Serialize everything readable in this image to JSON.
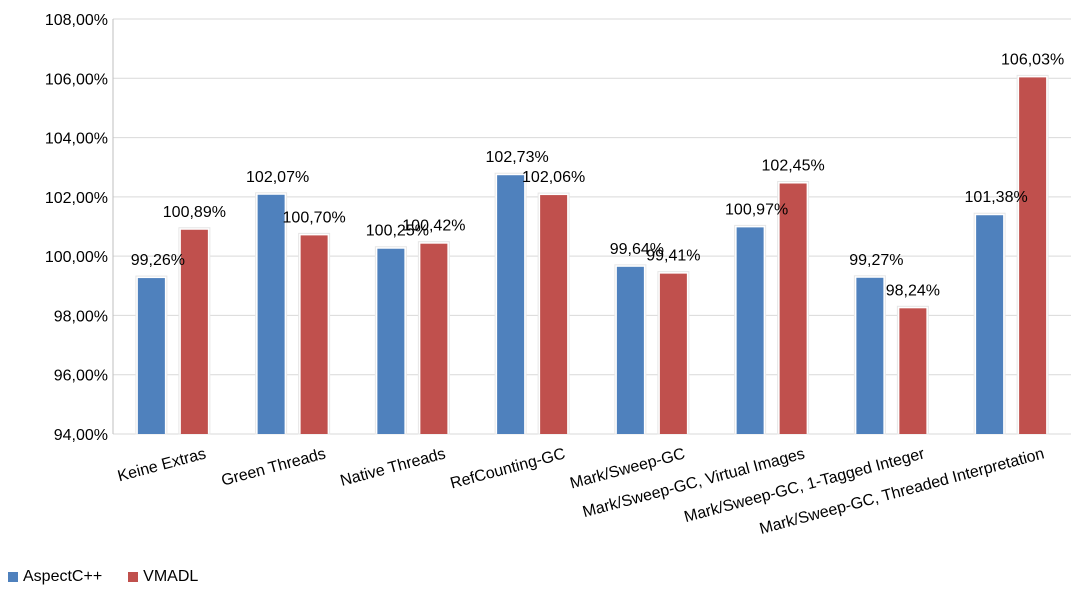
{
  "chart_data": {
    "type": "bar",
    "categories": [
      "Keine Extras",
      "Green Threads",
      "Native Threads",
      "RefCounting-GC",
      "Mark/Sweep-GC",
      "Mark/Sweep-GC, Virtual Images",
      "Mark/Sweep-GC, 1-Tagged Integer",
      "Mark/Sweep-GC, Threaded Interpretation"
    ],
    "series": [
      {
        "name": "AspectC++",
        "color": "#4f81bd",
        "values": [
          99.26,
          102.07,
          100.25,
          102.73,
          99.64,
          100.97,
          99.27,
          101.38
        ],
        "labels": [
          "99,26%",
          "102,07%",
          "100,25%",
          "102,73%",
          "99,64%",
          "100,97%",
          "99,27%",
          "101,38%"
        ]
      },
      {
        "name": "VMADL",
        "color": "#c0504d",
        "values": [
          100.89,
          100.7,
          100.42,
          102.06,
          99.41,
          102.45,
          98.24,
          106.03
        ],
        "labels": [
          "100,89%",
          "100,70%",
          "100,42%",
          "102,06%",
          "99,41%",
          "102,45%",
          "98,24%",
          "106,03%"
        ]
      }
    ],
    "yticks": [
      "94,00%",
      "96,00%",
      "98,00%",
      "100,00%",
      "102,00%",
      "104,00%",
      "106,00%",
      "108,00%"
    ],
    "ylim": [
      94,
      108
    ],
    "title": "",
    "xlabel": "",
    "ylabel": "",
    "grid": true,
    "legend_position": "bottom-left"
  }
}
